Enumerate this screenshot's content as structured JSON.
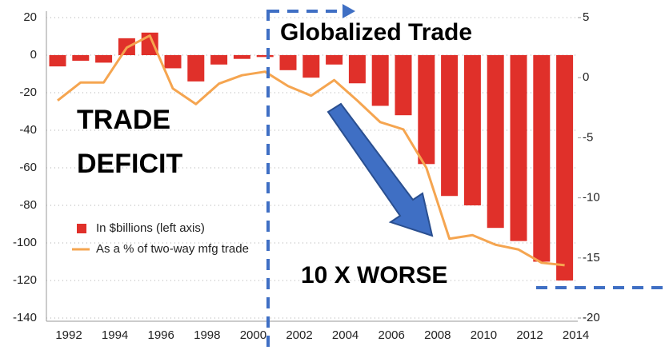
{
  "chart_data": {
    "type": "bar",
    "categories": [
      "1992",
      null,
      "1994",
      null,
      "1996",
      null,
      "1998",
      null,
      "2000",
      null,
      "2002",
      null,
      "2004",
      null,
      "2006",
      null,
      "2008",
      null,
      "2010",
      null,
      "2012",
      null,
      "2014"
    ],
    "series": [
      {
        "name": "In $billions (left axis)",
        "color": "#e0302a",
        "type": "bar",
        "values": [
          -6,
          -3,
          -4,
          9,
          12,
          -7,
          -14,
          -5,
          -2,
          -1,
          -8,
          -12,
          -5,
          -15,
          -27,
          -32,
          -58,
          -75,
          -80,
          -92,
          -99,
          -110,
          -120
        ]
      },
      {
        "name": "As a % of two-way mfg trade",
        "color": "#f5a550",
        "type": "line",
        "axis": "y2",
        "values": [
          -1.9,
          -0.4,
          -0.4,
          2.5,
          3.5,
          -0.9,
          -2.2,
          -0.5,
          0.2,
          0.5,
          -0.7,
          -1.5,
          -0.2,
          -1.9,
          -3.7,
          -4.3,
          -7.5,
          -13.4,
          -13.1,
          -13.9,
          -14.3,
          -15.4,
          -15.6
        ]
      }
    ],
    "ylim": [
      -140,
      20
    ],
    "yticks": [
      20,
      0,
      -20,
      -40,
      -60,
      -80,
      -100,
      -120,
      -140
    ],
    "y2lim": [
      -20,
      5
    ],
    "y2ticks": [
      5,
      0,
      -5,
      -10,
      -15,
      -20
    ],
    "grid": true,
    "legend": "lower left",
    "annotations": [
      "TRADE",
      "DEFICIT",
      "Globalized Trade",
      "10 X WORSE"
    ]
  }
}
